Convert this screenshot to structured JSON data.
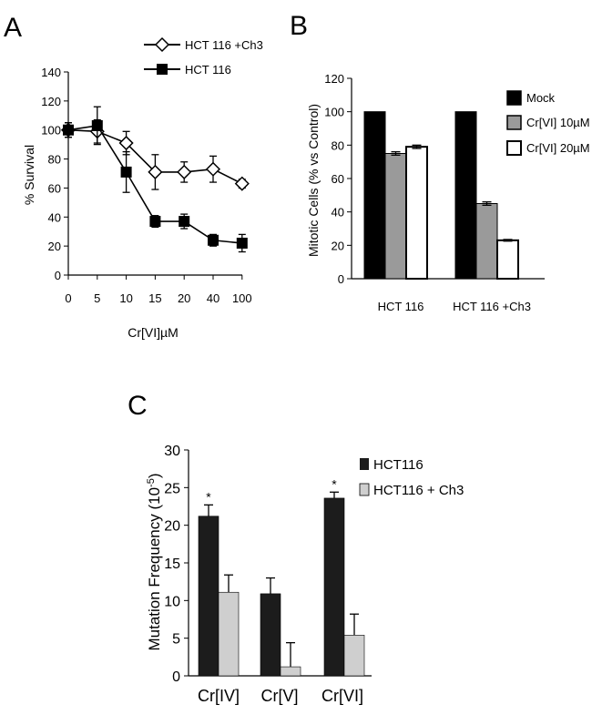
{
  "panels": {
    "a": "A",
    "b": "B",
    "c": "C"
  },
  "chart_data": [
    {
      "id": "A",
      "type": "line",
      "ylabel": "% Survival",
      "xlabel": "Cr[VI]µM",
      "x": [
        "0",
        "5",
        "10",
        "15",
        "20",
        "40",
        "100"
      ],
      "ylim": [
        0,
        140
      ],
      "yticks": [
        "0",
        "20",
        "40",
        "60",
        "80",
        "100",
        "120",
        "140"
      ],
      "legend_position": "top-right",
      "series": [
        {
          "name": "HCT 116 +Ch3",
          "marker": "open-diamond",
          "color": "#000000",
          "values": [
            100,
            99,
            91,
            71,
            71,
            73,
            63
          ],
          "errors": [
            5,
            8,
            8,
            12,
            7,
            9,
            3
          ]
        },
        {
          "name": "HCT 116",
          "marker": "filled-square",
          "color": "#000000",
          "values": [
            100,
            103,
            71,
            37,
            37,
            24,
            22
          ],
          "errors": [
            5,
            13,
            14,
            4,
            5,
            4,
            6
          ]
        }
      ]
    },
    {
      "id": "B",
      "type": "bar",
      "ylabel": "Mitotic Cells (% vs Control)",
      "categories": [
        "HCT 116",
        "HCT 116 +Ch3"
      ],
      "ylim": [
        0,
        120
      ],
      "yticks": [
        "0",
        "20",
        "40",
        "60",
        "80",
        "100",
        "120"
      ],
      "legend_position": "right",
      "series": [
        {
          "name": "Mock",
          "color": "#000000",
          "values": [
            100,
            100
          ],
          "errors": [
            0,
            0
          ]
        },
        {
          "name": "Cr[VI] 10µM",
          "color": "#9a9a9a",
          "values": [
            75,
            45
          ],
          "errors": [
            1,
            1
          ]
        },
        {
          "name": "Cr[VI] 20µM",
          "color": "#ffffff",
          "values": [
            79,
            23
          ],
          "errors": [
            1,
            0.5
          ]
        }
      ]
    },
    {
      "id": "C",
      "type": "bar",
      "ylabel": "Mutation Frequency (10",
      "ylabel_sup": "-5",
      "ylabel_end": ")",
      "categories": [
        "Cr[IV]",
        "Cr[V]",
        "Cr[VI]"
      ],
      "ylim": [
        0,
        30
      ],
      "yticks": [
        "0",
        "5",
        "10",
        "15",
        "20",
        "25",
        "30"
      ],
      "legend_position": "top-right",
      "annotation": "*",
      "series": [
        {
          "name": "HCT116",
          "color": "#1c1c1c",
          "values": [
            21.2,
            10.9,
            23.6
          ],
          "errors": [
            1.5,
            2.1,
            0.8
          ],
          "starred": [
            true,
            false,
            true
          ]
        },
        {
          "name": "HCT116 + Ch3",
          "color": "#cfcfcf",
          "values": [
            11.1,
            1.2,
            5.4
          ],
          "errors": [
            2.3,
            3.2,
            2.8
          ],
          "starred": [
            false,
            false,
            false
          ]
        }
      ]
    }
  ]
}
